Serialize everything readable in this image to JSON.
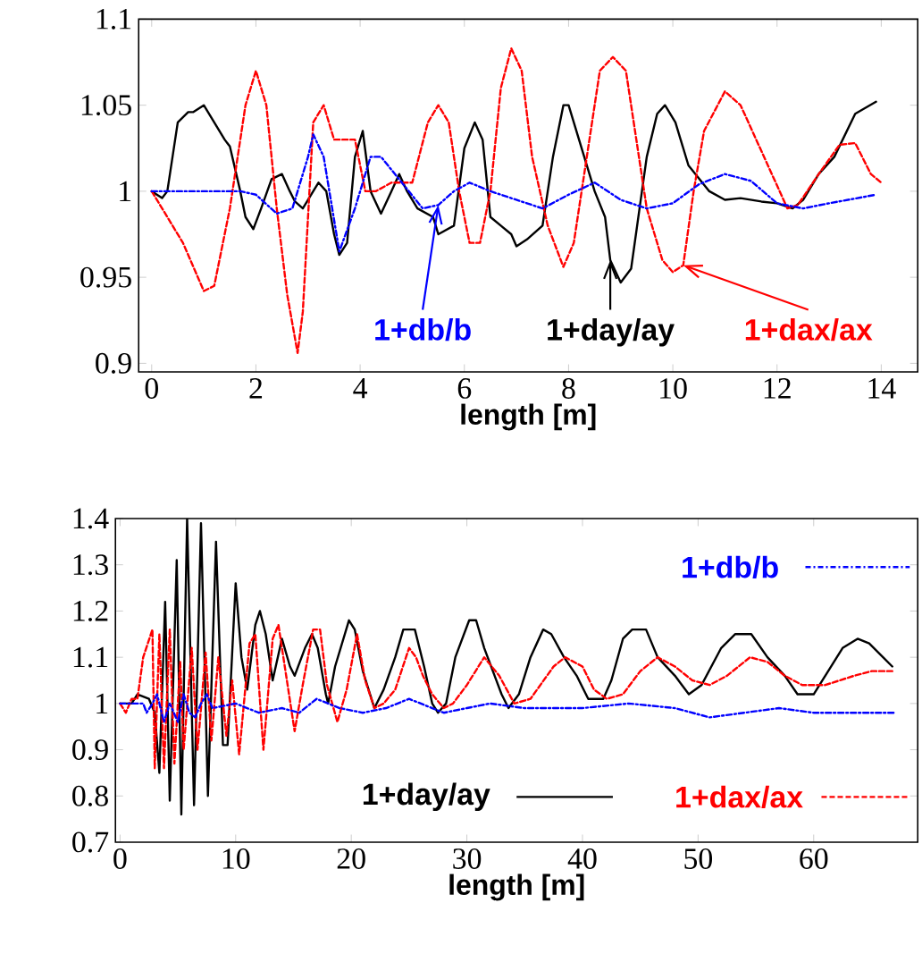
{
  "chart_data": [
    {
      "type": "line",
      "xlabel": "length [m]",
      "xlim": [
        -0.25,
        14.7
      ],
      "ylim": [
        0.895,
        1.1
      ],
      "xticks": [
        0,
        2,
        4,
        6,
        8,
        10,
        12,
        14
      ],
      "yticks": [
        0.9,
        0.95,
        1,
        1.05,
        1.1
      ],
      "series": [
        {
          "color": "#0000ff",
          "line_style": "dashdot",
          "x": [
            0,
            1,
            1.7,
            2,
            2.4,
            2.7,
            3,
            3.1,
            3.3,
            3.6,
            3.9,
            4.2,
            4.4,
            4.8,
            5.2,
            5.5,
            5.8,
            6.1,
            6.5,
            7,
            7.5,
            8,
            8.5,
            9,
            9.5,
            10,
            10.5,
            11,
            11.5,
            12,
            12.5,
            13,
            13.9
          ],
          "values": [
            1.0,
            1.0,
            1.0,
            0.998,
            0.987,
            0.99,
            1.02,
            1.033,
            1.02,
            0.965,
            0.99,
            1.02,
            1.02,
            1.005,
            0.99,
            0.992,
            1.0,
            1.005,
            1.0,
            0.995,
            0.99,
            0.998,
            1.005,
            0.995,
            0.99,
            0.993,
            1.004,
            1.01,
            1.006,
            0.993,
            0.99,
            0.993,
            0.998
          ]
        },
        {
          "color": "#000000",
          "line_style": "solid",
          "x": [
            0,
            0.2,
            0.3,
            0.5,
            0.7,
            0.8,
            1.0,
            1.2,
            1.4,
            1.5,
            1.7,
            1.8,
            1.95,
            2.1,
            2.3,
            2.5,
            2.65,
            2.75,
            2.9,
            3.1,
            3.2,
            3.35,
            3.5,
            3.6,
            3.75,
            3.9,
            4.05,
            4.2,
            4.4,
            4.6,
            4.75,
            4.9,
            5.1,
            5.4,
            5.5,
            5.8,
            6.0,
            6.2,
            6.35,
            6.5,
            6.7,
            6.9,
            7.0,
            7.2,
            7.5,
            7.7,
            7.9,
            8.0,
            8.2,
            8.5,
            8.7,
            8.8,
            9.0,
            9.2,
            9.5,
            9.7,
            9.85,
            10.05,
            10.3,
            10.7,
            11.0,
            11.3,
            11.7,
            12.0,
            12.3,
            12.5,
            12.8,
            13.1,
            13.5,
            13.9
          ],
          "values": [
            1.0,
            0.996,
            1.0,
            1.04,
            1.046,
            1.046,
            1.05,
            1.04,
            1.03,
            1.026,
            1.0,
            0.985,
            0.978,
            0.99,
            1.007,
            1.01,
            1.0,
            0.994,
            0.99,
            1.0,
            1.005,
            1.0,
            0.975,
            0.963,
            0.97,
            1.02,
            1.035,
            1.0,
            0.987,
            1.0,
            1.01,
            1.0,
            0.99,
            0.985,
            0.975,
            0.98,
            1.025,
            1.04,
            1.03,
            0.985,
            0.98,
            0.975,
            0.968,
            0.972,
            0.98,
            1.02,
            1.05,
            1.05,
            1.03,
            1.0,
            0.985,
            0.96,
            0.947,
            0.955,
            1.02,
            1.045,
            1.05,
            1.04,
            1.015,
            1.0,
            0.995,
            0.996,
            0.994,
            0.993,
            0.99,
            0.995,
            1.01,
            1.02,
            1.045,
            1.052
          ]
        },
        {
          "color": "#ff0000",
          "line_style": "dashed",
          "x": [
            0,
            0.6,
            1.0,
            1.2,
            1.5,
            1.8,
            2.0,
            2.2,
            2.4,
            2.6,
            2.8,
            2.9,
            3.1,
            3.3,
            3.5,
            3.9,
            4.1,
            4.3,
            4.6,
            5.0,
            5.3,
            5.5,
            5.7,
            5.9,
            6.1,
            6.3,
            6.5,
            6.7,
            6.9,
            7.1,
            7.3,
            7.6,
            7.9,
            8.1,
            8.4,
            8.6,
            8.85,
            9.1,
            9.3,
            9.5,
            9.8,
            10.0,
            10.2,
            10.4,
            10.6,
            11.0,
            11.3,
            11.6,
            11.9,
            12.2,
            12.4,
            12.8,
            13.2,
            13.5,
            13.8,
            14.0
          ],
          "values": [
            1.0,
            0.97,
            0.942,
            0.945,
            0.99,
            1.05,
            1.07,
            1.05,
            0.99,
            0.94,
            0.906,
            0.93,
            1.04,
            1.05,
            1.03,
            1.03,
            1.0,
            1.0,
            1.005,
            1.005,
            1.04,
            1.05,
            1.04,
            1.0,
            0.97,
            0.97,
            1.0,
            1.06,
            1.083,
            1.07,
            1.02,
            0.98,
            0.956,
            0.97,
            1.03,
            1.07,
            1.078,
            1.07,
            1.03,
            0.99,
            0.96,
            0.953,
            0.957,
            1.0,
            1.035,
            1.058,
            1.05,
            1.03,
            1.01,
            0.99,
            0.992,
            1.01,
            1.027,
            1.028,
            1.01,
            1.005
          ]
        }
      ],
      "annotations": [
        {
          "text": "1+db/b",
          "x": 5.5,
          "y": 0.992
        },
        {
          "text": "1+day/ay",
          "x": 8.8,
          "y": 0.96
        },
        {
          "text": "1+dax/ax",
          "x": 10.2,
          "y": 0.957
        }
      ]
    },
    {
      "type": "line",
      "xlabel": "length [m]",
      "xlim": [
        -0.4,
        69
      ],
      "ylim": [
        0.7,
        1.4
      ],
      "xticks": [
        0,
        10,
        20,
        30,
        40,
        50,
        60
      ],
      "yticks": [
        0.7,
        0.8,
        0.9,
        1,
        1.1,
        1.2,
        1.3,
        1.4
      ],
      "legend": "right",
      "series": [
        {
          "name": "1+db/b",
          "color": "#0000ff",
          "line_style": "dashdot",
          "x": [
            0,
            2,
            2.3,
            2.8,
            3.2,
            3.8,
            4.3,
            5,
            5.5,
            6,
            6.5,
            7,
            7.5,
            8,
            10,
            12,
            14,
            15.5,
            17,
            19,
            21,
            23,
            25,
            27,
            28,
            30,
            32,
            35,
            40,
            44,
            48,
            51,
            54,
            57,
            60,
            67
          ],
          "values": [
            1.0,
            1.0,
            0.98,
            1.0,
            1.02,
            0.96,
            1.0,
            0.96,
            1.02,
            0.98,
            0.97,
            1.0,
            1.02,
            0.99,
            1.0,
            0.98,
            0.99,
            0.98,
            1.01,
            0.99,
            0.98,
            0.99,
            1.01,
            0.99,
            0.98,
            0.99,
            1.0,
            0.99,
            0.99,
            1.0,
            0.99,
            0.97,
            0.98,
            0.99,
            0.98,
            0.98
          ]
        },
        {
          "name": "1+day/ay",
          "color": "#000000",
          "line_style": "solid",
          "x": [
            0,
            1,
            1.5,
            2.5,
            3,
            3.4,
            3.9,
            4.3,
            4.9,
            5.3,
            5.8,
            6.4,
            7.0,
            7.6,
            8.3,
            8.9,
            9.3,
            10.0,
            10.5,
            11.0,
            11.7,
            12.1,
            12.6,
            13.2,
            14.0,
            14.7,
            15.1,
            16.0,
            16.6,
            17.1,
            17.8,
            18.0,
            18.6,
            19.8,
            20.3,
            21.0,
            22.0,
            22.8,
            23.8,
            24.5,
            25.5,
            26.3,
            27.0,
            27.5,
            28.2,
            29.0,
            30.2,
            30.8,
            31.5,
            33.0,
            33.6,
            34.5,
            35.5,
            36.6,
            37.3,
            38.4,
            39.5,
            40.5,
            41.8,
            42.5,
            43.5,
            44.3,
            45.5,
            46.5,
            48.0,
            49.2,
            50.3,
            52.0,
            53.2,
            54.6,
            56.0,
            57.5,
            58.6,
            60.0,
            61.0,
            62.5,
            63.8,
            64.8,
            66.0,
            66.8
          ],
          "values": [
            1.0,
            1.0,
            1.02,
            1.01,
            0.98,
            0.85,
            1.22,
            0.79,
            1.31,
            0.76,
            1.4,
            0.78,
            1.39,
            0.8,
            1.35,
            0.91,
            0.91,
            1.26,
            1.1,
            1.03,
            1.17,
            1.2,
            1.15,
            1.05,
            1.14,
            1.08,
            1.06,
            1.12,
            1.15,
            1.12,
            1.02,
            1.0,
            1.08,
            1.18,
            1.16,
            1.07,
            0.99,
            1.03,
            1.1,
            1.16,
            1.16,
            1.08,
            1.0,
            0.98,
            1.0,
            1.1,
            1.18,
            1.18,
            1.12,
            1.02,
            0.99,
            1.02,
            1.1,
            1.16,
            1.15,
            1.1,
            1.06,
            1.01,
            1.01,
            1.05,
            1.14,
            1.16,
            1.16,
            1.1,
            1.06,
            1.02,
            1.04,
            1.12,
            1.15,
            1.15,
            1.1,
            1.06,
            1.02,
            1.02,
            1.06,
            1.12,
            1.14,
            1.13,
            1.1,
            1.08
          ]
        },
        {
          "name": "1+dax/ax",
          "color": "#ff0000",
          "line_style": "dashed",
          "x": [
            0,
            0.5,
            1,
            1.5,
            2,
            2.8,
            3.0,
            3.4,
            3.8,
            4.3,
            4.7,
            5.2,
            5.5,
            6.2,
            6.7,
            7.4,
            7.9,
            8.5,
            9.2,
            9.7,
            10.3,
            11.2,
            11.7,
            12.4,
            13.2,
            13.7,
            15.1,
            15.8,
            16.7,
            17.3,
            17.9,
            18.8,
            19.6,
            20.5,
            21.2,
            22.0,
            22.8,
            23.8,
            25.0,
            25.6,
            26.2,
            27.0,
            28.0,
            28.8,
            30.0,
            31.5,
            32.8,
            34.1,
            35.5,
            37.5,
            38.5,
            40.0,
            41.0,
            42.1,
            43.5,
            45.0,
            46.5,
            48.0,
            49.5,
            51.0,
            52.5,
            54.5,
            56.0,
            57.5,
            59.0,
            61.0,
            63.5,
            65.0,
            66.8
          ],
          "values": [
            1.0,
            0.98,
            1.01,
            1.01,
            1.1,
            1.16,
            0.86,
            1.15,
            0.86,
            1.16,
            0.87,
            1.09,
            0.9,
            1.12,
            0.9,
            1.11,
            0.92,
            1.1,
            0.93,
            1.05,
            0.89,
            1.13,
            1.15,
            0.9,
            1.14,
            1.17,
            0.94,
            1.04,
            1.16,
            1.16,
            1.04,
            0.96,
            1.03,
            1.15,
            1.05,
            0.99,
            1.0,
            1.03,
            1.12,
            1.1,
            1.06,
            1.02,
            0.99,
            1.0,
            1.04,
            1.1,
            1.06,
            1.0,
            1.01,
            1.08,
            1.1,
            1.08,
            1.03,
            1.01,
            1.02,
            1.07,
            1.1,
            1.08,
            1.05,
            1.04,
            1.06,
            1.1,
            1.09,
            1.06,
            1.04,
            1.04,
            1.06,
            1.07,
            1.07
          ]
        }
      ]
    }
  ]
}
